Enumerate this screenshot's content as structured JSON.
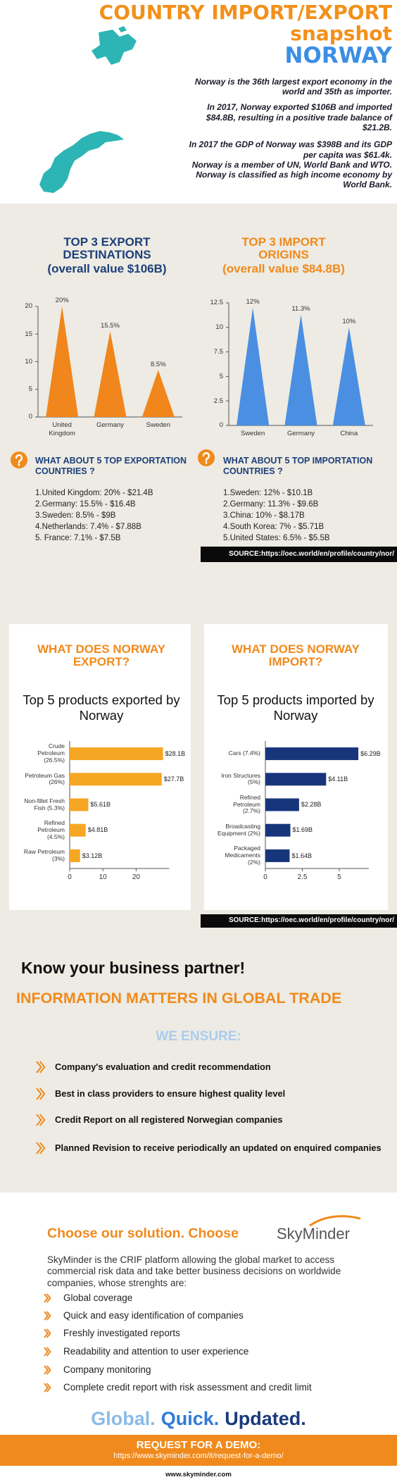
{
  "header": {
    "title": "COUNTRY IMPORT/EXPORT",
    "subtitle": "snapshot",
    "country": "NORWAY",
    "paragraphs": [
      [
        "Norway is the 36th largest export economy in the",
        "world and 35th as importer."
      ],
      [
        "In 2017, Norway exported $106B and imported",
        "$84.8B, resulting in a positive trade balance of",
        "$21.2B."
      ],
      [
        "In 2017 the GDP of Norway was $398B and its GDP",
        "per capita was $61.4k.",
        "Norway is a member of UN, World Bank and WTO.",
        "Norway is classified as high income economy by",
        "World Bank."
      ]
    ]
  },
  "chart_data": [
    {
      "type": "bar",
      "bar_shape": "triangle",
      "title": "TOP 3 EXPORT DESTINATIONS",
      "subtitle": "(overall value $106B)",
      "categories": [
        "United Kingdom",
        "Germany",
        "Sweden"
      ],
      "values": [
        20,
        15.5,
        8.5
      ],
      "value_labels": [
        "20%",
        "15.5%",
        "8.5%"
      ],
      "color": "#f0861c",
      "ylim": [
        0,
        20
      ],
      "yticks": [
        0,
        5,
        10,
        15,
        20
      ]
    },
    {
      "type": "bar",
      "bar_shape": "triangle",
      "title": "TOP 3 IMPORT ORIGINS",
      "subtitle": "(overall value $84.8B)",
      "categories": [
        "Sweden",
        "Germany",
        "China"
      ],
      "values": [
        12,
        11.3,
        10
      ],
      "value_labels": [
        "12%",
        "11.3%",
        "10%"
      ],
      "color": "#4a8fe2",
      "ylim": [
        0,
        12.5
      ],
      "yticks": [
        0,
        2.5,
        5,
        7.5,
        10,
        12.5
      ]
    },
    {
      "type": "bar",
      "horizontal": true,
      "title": "WHAT DOES NORWAY EXPORT?",
      "subtitle": "Top 5 products exported by Norway",
      "categories": [
        "Crude Petroleum (26.5%)",
        "Petroleum Gas (26%)",
        "Non-fillet Fresh Fish (5.3%)",
        "Refined Petroleum (4.5%)",
        "Raw Petroleum (3%)"
      ],
      "values": [
        28.1,
        27.7,
        5.61,
        4.81,
        3.12
      ],
      "value_labels": [
        "$28.1B",
        "$27.7B",
        "$5.61B",
        "$4.81B",
        "$3.12B"
      ],
      "color": "#f5a623",
      "xlim": [
        0,
        30
      ],
      "xticks": [
        0,
        10,
        20
      ]
    },
    {
      "type": "bar",
      "horizontal": true,
      "title": "WHAT DOES NORWAY IMPORT?",
      "subtitle": "Top 5 products imported by Norway",
      "categories": [
        "Cars (7.4%)",
        "Iron Structures (5%)",
        "Refined Petroleum (2.7%)",
        "Broadcasting Equipment (2%)",
        "Packaged Medicaments (2%)"
      ],
      "values": [
        6.29,
        4.11,
        2.28,
        1.69,
        1.64
      ],
      "value_labels": [
        "$6.29B",
        "$4.11B",
        "$2.28B",
        "$1.69B",
        "$1.64B"
      ],
      "color": "#17357a",
      "xlim": [
        0,
        7
      ],
      "xticks": [
        0,
        2.5,
        5
      ]
    }
  ],
  "questions": [
    {
      "question": "WHAT ABOUT 5 TOP EXPORTATION COUNTRIES ?",
      "items": [
        "1.United Kingdom: 20% - $21.4B",
        "2.Germany: 15.5% - $16.4B",
        "3.Sweden: 8.5% - $9B",
        "4.Netherlands: 7.4% - $7.88B",
        "5. France: 7.1% - $7.5B"
      ]
    },
    {
      "question": "WHAT ABOUT 5 TOP IMPORTATION COUNTRIES ?",
      "items": [
        "1.Sweden: 12% - $10.1B",
        "2.Germany: 11.3% - $9.6B",
        "3.China: 10% - $8.17B",
        "4.South Korea: 7% - $5.71B",
        "5.United States: 6.5% - $5.5B"
      ]
    }
  ],
  "sources": [
    "SOURCE:https://oec.world/en/profile/country/nor/",
    "SOURCE:https://oec.world/en/profile/country/nor/"
  ],
  "partner": {
    "heading": "Know your business partner!",
    "subheading": "INFORMATION MATTERS IN GLOBAL TRADE",
    "ensure_title": "WE ENSURE:",
    "items": [
      "Company's evaluation and credit recommendation",
      "Best in class providers to ensure highest quality level",
      "Credit Report on all registered Norwegian companies",
      "Planned Revision to receive periodically an updated on enquired companies"
    ]
  },
  "solution": {
    "heading": "Choose our solution. Choose",
    "brand": "SkyMinder",
    "description": "SkyMinder is the CRIF platform allowing the global market to access commercial risk data and take better business decisions on worldwide companies, whose strenghts are:",
    "strengths": [
      "Global coverage",
      "Quick and easy identification of companies",
      "Freshly investigated reports",
      "Readability and attention to user experience",
      "Company monitoring",
      "Complete credit report with risk assessment and credit limit"
    ],
    "tagline": [
      "Global.",
      "Quick.",
      "Updated."
    ],
    "cta": "REQUEST FOR A DEMO:",
    "url": "https://www.skyminder.com/it/request-for-a-demo/",
    "footer": "www.skyminder.com"
  }
}
